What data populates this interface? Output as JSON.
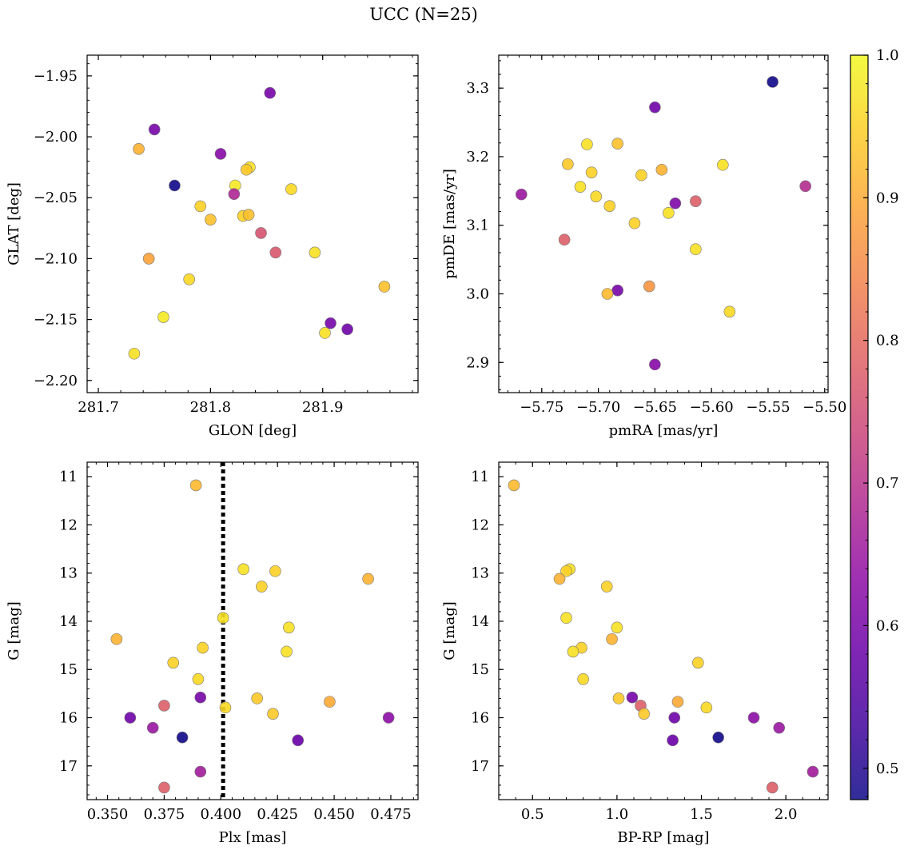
{
  "figure": {
    "title": "UCC (N=25)",
    "colorbar": {
      "cmap": "plasma",
      "range": [
        0.478,
        1.0
      ],
      "ticks": [
        "0.5",
        "0.6",
        "0.7",
        "0.8",
        "0.9",
        "1.0"
      ]
    }
  },
  "chart_data": [
    {
      "type": "scatter",
      "xlabel": "GLON [deg]",
      "ylabel": "GLAT [deg]",
      "xlim": [
        281.69,
        281.985
      ],
      "ylim": [
        -2.21,
        -1.933
      ],
      "yinvert": false,
      "xticks": [
        "281.7",
        "281.8",
        "281.9"
      ],
      "yticks": [
        "−2.20",
        "−2.15",
        "−2.10",
        "−2.05",
        "−2.00",
        "−1.95"
      ],
      "points": [
        {
          "x": 281.853,
          "y": -1.964,
          "c": 0.6
        },
        {
          "x": 281.75,
          "y": -1.994,
          "c": 0.6
        },
        {
          "x": 281.736,
          "y": -2.01,
          "c": 0.91
        },
        {
          "x": 281.809,
          "y": -2.014,
          "c": 0.62
        },
        {
          "x": 281.768,
          "y": -2.04,
          "c": 0.48
        },
        {
          "x": 281.835,
          "y": -2.025,
          "c": 0.97
        },
        {
          "x": 281.832,
          "y": -2.027,
          "c": 0.94
        },
        {
          "x": 281.822,
          "y": -2.04,
          "c": 0.98
        },
        {
          "x": 281.821,
          "y": -2.047,
          "c": 0.68
        },
        {
          "x": 281.872,
          "y": -2.043,
          "c": 0.96
        },
        {
          "x": 281.791,
          "y": -2.057,
          "c": 0.95
        },
        {
          "x": 281.8,
          "y": -2.068,
          "c": 0.93
        },
        {
          "x": 281.829,
          "y": -2.065,
          "c": 0.95
        },
        {
          "x": 281.834,
          "y": -2.064,
          "c": 0.93
        },
        {
          "x": 281.845,
          "y": -2.079,
          "c": 0.76
        },
        {
          "x": 281.745,
          "y": -2.1,
          "c": 0.89
        },
        {
          "x": 281.858,
          "y": -2.095,
          "c": 0.77
        },
        {
          "x": 281.893,
          "y": -2.095,
          "c": 0.97
        },
        {
          "x": 281.781,
          "y": -2.117,
          "c": 0.96
        },
        {
          "x": 281.955,
          "y": -2.123,
          "c": 0.93
        },
        {
          "x": 281.758,
          "y": -2.148,
          "c": 0.98
        },
        {
          "x": 281.907,
          "y": -2.153,
          "c": 0.6
        },
        {
          "x": 281.922,
          "y": -2.158,
          "c": 0.59
        },
        {
          "x": 281.902,
          "y": -2.161,
          "c": 0.97
        },
        {
          "x": 281.732,
          "y": -2.178,
          "c": 0.97
        }
      ]
    },
    {
      "type": "scatter",
      "xlabel": "pmRA [mas/yr]",
      "ylabel": "pmDE [mas/yr]",
      "xlim": [
        -5.788,
        -5.497
      ],
      "ylim": [
        2.856,
        3.348
      ],
      "yinvert": false,
      "xticks": [
        "−5.75",
        "−5.70",
        "−5.65",
        "−5.60",
        "−5.55",
        "−5.50"
      ],
      "yticks": [
        "2.9",
        "3.0",
        "3.1",
        "3.2",
        "3.3"
      ],
      "points": [
        {
          "x": -5.546,
          "y": 3.309,
          "c": 0.48
        },
        {
          "x": -5.65,
          "y": 3.272,
          "c": 0.59
        },
        {
          "x": -5.71,
          "y": 3.218,
          "c": 0.97
        },
        {
          "x": -5.683,
          "y": 3.219,
          "c": 0.93
        },
        {
          "x": -5.727,
          "y": 3.189,
          "c": 0.94
        },
        {
          "x": -5.59,
          "y": 3.188,
          "c": 0.97
        },
        {
          "x": -5.706,
          "y": 3.177,
          "c": 0.95
        },
        {
          "x": -5.644,
          "y": 3.181,
          "c": 0.91
        },
        {
          "x": -5.662,
          "y": 3.173,
          "c": 0.95
        },
        {
          "x": -5.517,
          "y": 3.157,
          "c": 0.69
        },
        {
          "x": -5.716,
          "y": 3.156,
          "c": 0.97
        },
        {
          "x": -5.768,
          "y": 3.145,
          "c": 0.65
        },
        {
          "x": -5.702,
          "y": 3.142,
          "c": 0.96
        },
        {
          "x": -5.614,
          "y": 3.135,
          "c": 0.78
        },
        {
          "x": -5.632,
          "y": 3.132,
          "c": 0.61
        },
        {
          "x": -5.69,
          "y": 3.128,
          "c": 0.95
        },
        {
          "x": -5.638,
          "y": 3.118,
          "c": 0.97
        },
        {
          "x": -5.668,
          "y": 3.103,
          "c": 0.95
        },
        {
          "x": -5.73,
          "y": 3.079,
          "c": 0.78
        },
        {
          "x": -5.614,
          "y": 3.065,
          "c": 0.97
        },
        {
          "x": -5.655,
          "y": 3.011,
          "c": 0.87
        },
        {
          "x": -5.683,
          "y": 3.005,
          "c": 0.6
        },
        {
          "x": -5.692,
          "y": 3.0,
          "c": 0.92
        },
        {
          "x": -5.584,
          "y": 2.974,
          "c": 0.96
        },
        {
          "x": -5.65,
          "y": 2.897,
          "c": 0.62
        }
      ]
    },
    {
      "type": "scatter",
      "xlabel": "Plx [mas]",
      "ylabel": "G [mag]",
      "xlim": [
        0.341,
        0.487
      ],
      "ylim": [
        10.7,
        17.7
      ],
      "yinvert": true,
      "xticks": [
        "0.350",
        "0.375",
        "0.400",
        "0.425",
        "0.450",
        "0.475"
      ],
      "yticks": [
        "11",
        "12",
        "13",
        "14",
        "15",
        "16",
        "17"
      ],
      "vline": {
        "x": 0.401,
        "style": "dotted"
      },
      "points": [
        {
          "x": 0.389,
          "y": 11.18,
          "c": 0.92
        },
        {
          "x": 0.41,
          "y": 12.92,
          "c": 0.97
        },
        {
          "x": 0.424,
          "y": 12.96,
          "c": 0.95
        },
        {
          "x": 0.418,
          "y": 13.28,
          "c": 0.95
        },
        {
          "x": 0.465,
          "y": 13.12,
          "c": 0.91
        },
        {
          "x": 0.401,
          "y": 13.93,
          "c": 0.97
        },
        {
          "x": 0.43,
          "y": 14.13,
          "c": 0.97
        },
        {
          "x": 0.354,
          "y": 14.37,
          "c": 0.91
        },
        {
          "x": 0.392,
          "y": 14.55,
          "c": 0.95
        },
        {
          "x": 0.429,
          "y": 14.63,
          "c": 0.97
        },
        {
          "x": 0.379,
          "y": 14.86,
          "c": 0.95
        },
        {
          "x": 0.39,
          "y": 15.2,
          "c": 0.96
        },
        {
          "x": 0.391,
          "y": 15.58,
          "c": 0.6
        },
        {
          "x": 0.416,
          "y": 15.6,
          "c": 0.94
        },
        {
          "x": 0.448,
          "y": 15.67,
          "c": 0.9
        },
        {
          "x": 0.375,
          "y": 15.75,
          "c": 0.78
        },
        {
          "x": 0.402,
          "y": 15.79,
          "c": 0.96
        },
        {
          "x": 0.423,
          "y": 15.92,
          "c": 0.94
        },
        {
          "x": 0.36,
          "y": 16.0,
          "c": 0.59
        },
        {
          "x": 0.474,
          "y": 16.0,
          "c": 0.63
        },
        {
          "x": 0.37,
          "y": 16.21,
          "c": 0.65
        },
        {
          "x": 0.383,
          "y": 16.41,
          "c": 0.48
        },
        {
          "x": 0.434,
          "y": 16.47,
          "c": 0.58
        },
        {
          "x": 0.391,
          "y": 17.12,
          "c": 0.66
        },
        {
          "x": 0.375,
          "y": 17.45,
          "c": 0.78
        }
      ]
    },
    {
      "type": "scatter",
      "xlabel": "BP-RP [mag]",
      "ylabel": "G [mag]",
      "xlim": [
        0.3,
        2.25
      ],
      "ylim": [
        10.7,
        17.7
      ],
      "yinvert": true,
      "xticks": [
        "0.5",
        "1.0",
        "1.5",
        "2.0"
      ],
      "yticks": [
        "11",
        "12",
        "13",
        "14",
        "15",
        "16",
        "17"
      ],
      "points": [
        {
          "x": 0.39,
          "y": 11.18,
          "c": 0.92
        },
        {
          "x": 0.72,
          "y": 12.92,
          "c": 0.97
        },
        {
          "x": 0.7,
          "y": 12.96,
          "c": 0.95
        },
        {
          "x": 0.66,
          "y": 13.12,
          "c": 0.91
        },
        {
          "x": 0.94,
          "y": 13.28,
          "c": 0.95
        },
        {
          "x": 0.7,
          "y": 13.93,
          "c": 0.97
        },
        {
          "x": 1.0,
          "y": 14.13,
          "c": 0.97
        },
        {
          "x": 0.97,
          "y": 14.37,
          "c": 0.91
        },
        {
          "x": 0.79,
          "y": 14.55,
          "c": 0.95
        },
        {
          "x": 0.74,
          "y": 14.63,
          "c": 0.97
        },
        {
          "x": 1.48,
          "y": 14.86,
          "c": 0.95
        },
        {
          "x": 0.8,
          "y": 15.2,
          "c": 0.96
        },
        {
          "x": 1.01,
          "y": 15.6,
          "c": 0.94
        },
        {
          "x": 1.09,
          "y": 15.58,
          "c": 0.6
        },
        {
          "x": 1.36,
          "y": 15.67,
          "c": 0.9
        },
        {
          "x": 1.14,
          "y": 15.75,
          "c": 0.78
        },
        {
          "x": 1.53,
          "y": 15.79,
          "c": 0.96
        },
        {
          "x": 1.16,
          "y": 15.92,
          "c": 0.94
        },
        {
          "x": 1.34,
          "y": 16.0,
          "c": 0.59
        },
        {
          "x": 1.81,
          "y": 16.0,
          "c": 0.63
        },
        {
          "x": 1.96,
          "y": 16.21,
          "c": 0.65
        },
        {
          "x": 1.6,
          "y": 16.41,
          "c": 0.48
        },
        {
          "x": 1.33,
          "y": 16.47,
          "c": 0.58
        },
        {
          "x": 2.16,
          "y": 17.12,
          "c": 0.66
        },
        {
          "x": 1.92,
          "y": 17.45,
          "c": 0.78
        }
      ]
    }
  ]
}
